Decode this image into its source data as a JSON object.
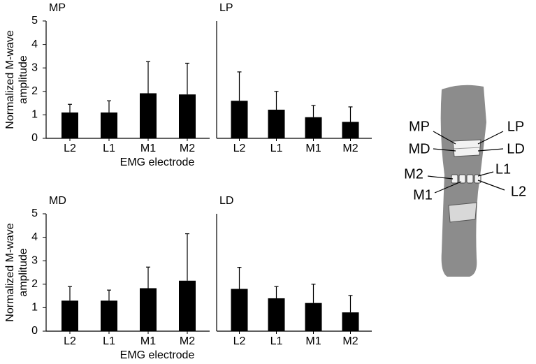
{
  "chart_data": [
    {
      "type": "bar",
      "title": "MP",
      "ylabel": "Normalized M-wave amplitude",
      "xlabel": "EMG electrode",
      "categories": [
        "L2",
        "L1",
        "M1",
        "M2"
      ],
      "values": [
        1.1,
        1.1,
        1.92,
        1.87
      ],
      "errors": [
        0.35,
        0.5,
        1.35,
        1.33
      ],
      "color": "#000000",
      "ylim": [
        0,
        5
      ],
      "yticks": [
        0,
        1,
        2,
        3,
        4,
        5
      ]
    },
    {
      "type": "bar",
      "title": "LP",
      "categories": [
        "L2",
        "L1",
        "M1",
        "M2"
      ],
      "values": [
        1.6,
        1.22,
        0.9,
        0.7
      ],
      "errors": [
        1.23,
        0.78,
        0.5,
        0.64
      ],
      "color": "#000000",
      "ylim": [
        0,
        5
      ]
    },
    {
      "type": "bar",
      "title": "MD",
      "ylabel": "Normalized M-wave amplitude",
      "xlabel": "EMG electrode",
      "categories": [
        "L2",
        "L1",
        "M1",
        "M2"
      ],
      "values": [
        1.3,
        1.3,
        1.83,
        2.15
      ],
      "errors": [
        0.6,
        0.45,
        0.9,
        2.0
      ],
      "color": "#000000",
      "ylim": [
        0,
        5
      ],
      "yticks": [
        0,
        1,
        2,
        3,
        4,
        5
      ]
    },
    {
      "type": "bar",
      "title": "LD",
      "categories": [
        "L2",
        "L1",
        "M1",
        "M2"
      ],
      "values": [
        1.8,
        1.4,
        1.2,
        0.8
      ],
      "errors": [
        0.92,
        0.5,
        0.8,
        0.72
      ],
      "color": "#000000",
      "ylim": [
        0,
        5
      ]
    }
  ],
  "diagram": {
    "labels": [
      "MP",
      "LP",
      "MD",
      "LD",
      "M2",
      "L1",
      "M1",
      "L2"
    ]
  }
}
